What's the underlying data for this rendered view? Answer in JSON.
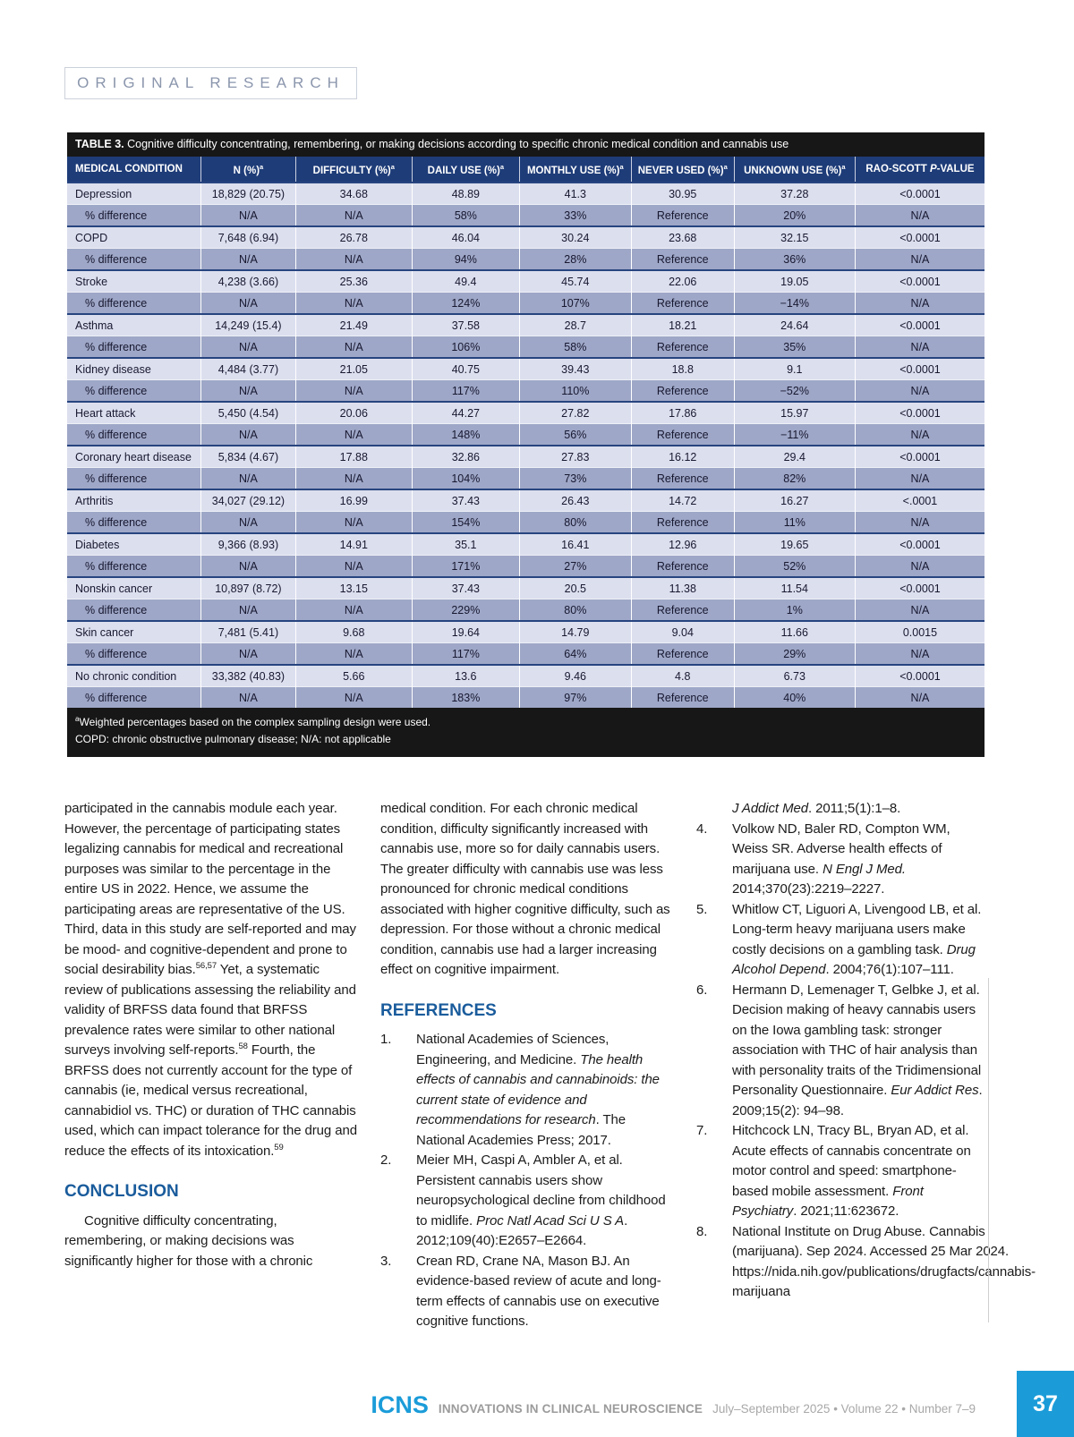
{
  "badge": {
    "label": "ORIGINAL RESEARCH"
  },
  "table": {
    "title_label": "TABLE 3.",
    "title_text": " Cognitive difficulty concentrating, remembering, or making decisions according to specific chronic medical condition and cannabis use",
    "columns": [
      [
        {
          "t": "MEDICAL CONDITION"
        }
      ],
      [
        {
          "t": "N (%)"
        },
        {
          "t": "a",
          "s": true
        }
      ],
      [
        {
          "t": "DIFFICULTY (%)"
        },
        {
          "t": "a",
          "s": true
        }
      ],
      [
        {
          "t": "DAILY USE (%)"
        },
        {
          "t": "a",
          "s": true
        }
      ],
      [
        {
          "t": "MONTHLY USE (%)"
        },
        {
          "t": "a",
          "s": true
        }
      ],
      [
        {
          "t": "NEVER USED (%)"
        },
        {
          "t": "a",
          "s": true
        }
      ],
      [
        {
          "t": "UNKNOWN USE (%)"
        },
        {
          "t": "a",
          "s": true
        }
      ],
      [
        {
          "t": "RAO-SCOTT "
        },
        {
          "t": "P",
          "i": true
        },
        {
          "t": "-VALUE"
        }
      ]
    ],
    "diff_label": "% difference",
    "rows": [
      {
        "name": "Depression",
        "values": [
          "18,829 (20.75)",
          "34.68",
          "48.89",
          "41.3",
          "30.95",
          "37.28",
          "<0.0001"
        ],
        "diff": [
          "N/A",
          "N/A",
          "58%",
          "33%",
          "Reference",
          "20%",
          "N/A"
        ]
      },
      {
        "name": "COPD",
        "values": [
          "7,648 (6.94)",
          "26.78",
          "46.04",
          "30.24",
          "23.68",
          "32.15",
          "<0.0001"
        ],
        "diff": [
          "N/A",
          "N/A",
          "94%",
          "28%",
          "Reference",
          "36%",
          "N/A"
        ]
      },
      {
        "name": "Stroke",
        "values": [
          "4,238 (3.66)",
          "25.36",
          "49.4",
          "45.74",
          "22.06",
          "19.05",
          "<0.0001"
        ],
        "diff": [
          "N/A",
          "N/A",
          "124%",
          "107%",
          "Reference",
          "−14%",
          "N/A"
        ]
      },
      {
        "name": "Asthma",
        "values": [
          "14,249 (15.4)",
          "21.49",
          "37.58",
          "28.7",
          "18.21",
          "24.64",
          "<0.0001"
        ],
        "diff": [
          "N/A",
          "N/A",
          "106%",
          "58%",
          "Reference",
          "35%",
          "N/A"
        ]
      },
      {
        "name": "Kidney disease",
        "values": [
          "4,484 (3.77)",
          "21.05",
          "40.75",
          "39.43",
          "18.8",
          "9.1",
          "<0.0001"
        ],
        "diff": [
          "N/A",
          "N/A",
          "117%",
          "110%",
          "Reference",
          "−52%",
          "N/A"
        ]
      },
      {
        "name": "Heart attack",
        "values": [
          "5,450 (4.54)",
          "20.06",
          "44.27",
          "27.82",
          "17.86",
          "15.97",
          "<0.0001"
        ],
        "diff": [
          "N/A",
          "N/A",
          "148%",
          "56%",
          "Reference",
          "−11%",
          "N/A"
        ]
      },
      {
        "name": "Coronary heart disease",
        "values": [
          "5,834 (4.67)",
          "17.88",
          "32.86",
          "27.83",
          "16.12",
          "29.4",
          "<0.0001"
        ],
        "diff": [
          "N/A",
          "N/A",
          "104%",
          "73%",
          "Reference",
          "82%",
          "N/A"
        ]
      },
      {
        "name": "Arthritis",
        "values": [
          "34,027 (29.12)",
          "16.99",
          "37.43",
          "26.43",
          "14.72",
          "16.27",
          "<.0001"
        ],
        "diff": [
          "N/A",
          "N/A",
          "154%",
          "80%",
          "Reference",
          "11%",
          "N/A"
        ]
      },
      {
        "name": "Diabetes",
        "values": [
          "9,366 (8.93)",
          "14.91",
          "35.1",
          "16.41",
          "12.96",
          "19.65",
          "<0.0001"
        ],
        "diff": [
          "N/A",
          "N/A",
          "171%",
          "27%",
          "Reference",
          "52%",
          "N/A"
        ]
      },
      {
        "name": "Nonskin cancer",
        "values": [
          "10,897 (8.72)",
          "13.15",
          "37.43",
          "20.5",
          "11.38",
          "11.54",
          "<0.0001"
        ],
        "diff": [
          "N/A",
          "N/A",
          "229%",
          "80%",
          "Reference",
          "1%",
          "N/A"
        ]
      },
      {
        "name": "Skin cancer",
        "values": [
          "7,481 (5.41)",
          "9.68",
          "19.64",
          "14.79",
          "9.04",
          "11.66",
          "0.0015"
        ],
        "diff": [
          "N/A",
          "N/A",
          "117%",
          "64%",
          "Reference",
          "29%",
          "N/A"
        ]
      },
      {
        "name": "No chronic condition",
        "values": [
          "33,382 (40.83)",
          "5.66",
          "13.6",
          "9.46",
          "4.8",
          "6.73",
          "<0.0001"
        ],
        "diff": [
          "N/A",
          "N/A",
          "183%",
          "97%",
          "Reference",
          "40%",
          "N/A"
        ]
      }
    ],
    "footnotes": [
      [
        {
          "t": "a",
          "s": true
        },
        {
          "t": "Weighted percentages based on the complex sampling design were used."
        }
      ],
      [
        {
          "t": "COPD: chronic obstructive pulmonary disease; N/A: not applicable"
        }
      ]
    ],
    "colors": {
      "title_bar_bg": "#171717",
      "header_bg": "#1e3c78",
      "row_light": "#dcdfee",
      "row_dark": "#9ea7c7"
    }
  },
  "article": {
    "col1_paragraph": [
      {
        "t": "participated in the cannabis module each year. However, the percentage of participating states legalizing cannabis for medical and recreational purposes was similar to the percentage in the entire US in 2022. Hence, we assume the participating areas are representative of the US. Third, data in this study are self-reported and may be mood- and cognitive-dependent and prone to social desirability bias."
      },
      {
        "t": "56,57",
        "s": true
      },
      {
        "t": " Yet, a systematic review of publications assessing the reliability and validity of BRFSS data found that BRFSS prevalence rates were similar to other national surveys involving self-reports."
      },
      {
        "t": "58",
        "s": true
      },
      {
        "t": " Fourth, the BRFSS does not currently account for the type of cannabis (ie, medical versus recreational, cannabidiol vs. THC) or duration of THC cannabis used, which can impact tolerance for the drug and reduce the effects of its intoxication."
      },
      {
        "t": "59",
        "s": true
      }
    ],
    "conclusion_heading": "CONCLUSION",
    "conclusion_paragraph": "Cognitive difficulty concentrating, remembering, or making decisions was significantly higher for those with a chronic",
    "col2_paragraph": "medical condition. For each chronic medical condition, difficulty significantly increased with cannabis use, more so for daily cannabis users. The greater difficulty with cannabis use was less pronounced for chronic medical conditions associated with higher cognitive difficulty, such as depression. For those without a chronic medical condition, cannabis use had a larger increasing effect on cognitive impairment.",
    "references_heading": "REFERENCES",
    "references_col2": [
      {
        "num": "1.",
        "segments": [
          {
            "t": "National Academies of Sciences, Engineering, and Medicine. "
          },
          {
            "t": "The health effects of cannabis and cannabinoids: the current state of evidence and recommendations for research",
            "i": true
          },
          {
            "t": ". The National Academies Press; 2017."
          }
        ]
      },
      {
        "num": "2.",
        "segments": [
          {
            "t": "Meier MH, Caspi A, Ambler A, et al. Persistent cannabis users show neuropsychological decline from childhood to midlife. "
          },
          {
            "t": "Proc Natl Acad Sci U S A",
            "i": true
          },
          {
            "t": ". 2012;109(40):E2657–E2664."
          }
        ]
      },
      {
        "num": "3.",
        "segments": [
          {
            "t": "Crean RD, Crane NA, Mason BJ. An evidence-based review of acute and long-term effects of cannabis use on executive cognitive functions."
          }
        ]
      }
    ],
    "references_col3": [
      {
        "num": "",
        "segments": [
          {
            "t": "J Addict Med",
            "i": true
          },
          {
            "t": ". 2011;5(1):1–8."
          }
        ]
      },
      {
        "num": "4.",
        "segments": [
          {
            "t": "Volkow ND, Baler RD, Compton WM, Weiss SR. Adverse health effects of marijuana use. "
          },
          {
            "t": "N Engl J Med.",
            "i": true
          },
          {
            "t": " 2014;370(23):2219–2227."
          }
        ]
      },
      {
        "num": "5.",
        "segments": [
          {
            "t": "Whitlow CT, Liguori A, Livengood LB, et al. Long-term heavy marijuana users make costly decisions on a gambling task. "
          },
          {
            "t": "Drug Alcohol Depend",
            "i": true
          },
          {
            "t": ". 2004;76(1):107–111."
          }
        ]
      },
      {
        "num": "6.",
        "segments": [
          {
            "t": "Hermann D, Lemenager T, Gelbke J, et al. Decision making of heavy cannabis users on the Iowa gambling task: stronger association with THC of hair analysis than with personality traits of the Tridimensional Personality Questionnaire. "
          },
          {
            "t": "Eur Addict Res",
            "i": true
          },
          {
            "t": ". 2009;15(2): 94–98."
          }
        ]
      },
      {
        "num": "7.",
        "segments": [
          {
            "t": "Hitchcock LN, Tracy BL, Bryan AD, et al. Acute effects of cannabis concentrate on motor control and speed: smartphone-based mobile assessment. "
          },
          {
            "t": "Front Psychiatry",
            "i": true
          },
          {
            "t": ". 2021;11:623672."
          }
        ]
      },
      {
        "num": "8.",
        "segments": [
          {
            "t": "National Institute on Drug Abuse. Cannabis (marijuana). Sep 2024. Accessed 25 Mar 2024. https://nida.nih.gov/publications/drugfacts/cannabis-marijuana"
          }
        ]
      }
    ]
  },
  "footer": {
    "journal_abbr": "ICNS",
    "journal_name": "INNOVATIONS IN CLINICAL NEUROSCIENCE",
    "issue_info": "July–September 2025 • Volume 22 • Number 7–9",
    "page_number": "37",
    "accent_color": "#1b9cd9"
  }
}
